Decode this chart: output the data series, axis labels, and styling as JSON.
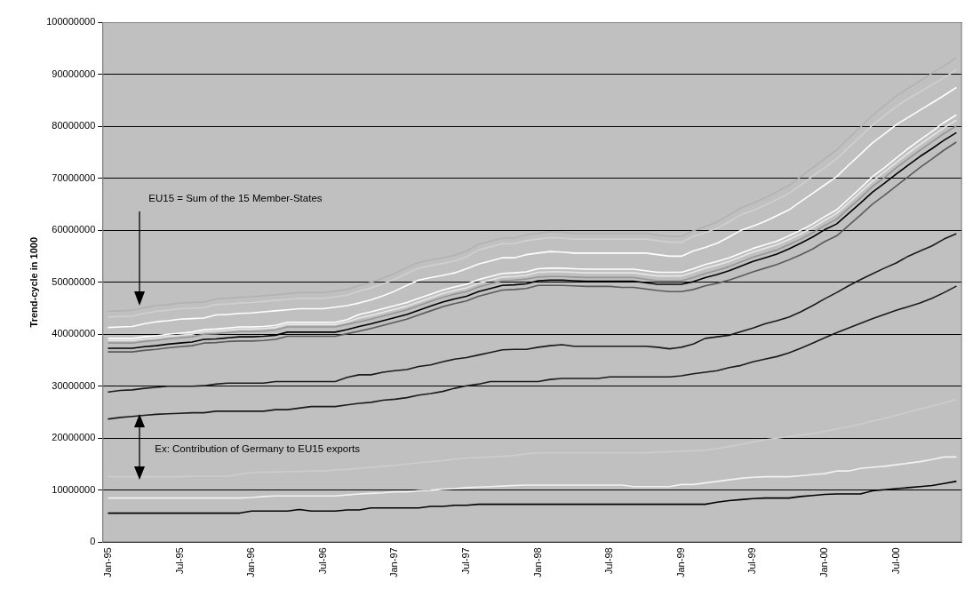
{
  "chart_data": {
    "type": "line",
    "ylabel": "Trend-cycle in 1000",
    "annotations": [
      "EU15 = Sum of the 15 Member-States",
      "Ex: Contribution of Germany to EU15 exports"
    ],
    "categories": [
      "Jan-95",
      null,
      null,
      null,
      null,
      null,
      "Jul-95",
      null,
      null,
      null,
      null,
      null,
      "Jan-96",
      null,
      null,
      null,
      null,
      null,
      "Jul-96",
      null,
      null,
      null,
      null,
      null,
      "Jan-97",
      null,
      null,
      null,
      null,
      null,
      "Jul-97",
      null,
      null,
      null,
      null,
      null,
      "Jan-98",
      null,
      null,
      null,
      null,
      null,
      "Jul-98",
      null,
      null,
      null,
      null,
      null,
      "Jan-99",
      null,
      null,
      null,
      null,
      null,
      "Jul-99",
      null,
      null,
      null,
      null,
      null,
      "Jan-00",
      null,
      null,
      null,
      null,
      null,
      "Jul-00",
      null,
      null,
      null,
      null,
      null
    ],
    "ylim": [
      0,
      100000000
    ],
    "yticks": [
      0,
      10000000,
      20000000,
      30000000,
      40000000,
      50000000,
      60000000,
      70000000,
      80000000,
      90000000,
      100000000
    ],
    "grid": "y",
    "marker": "none",
    "line_style": "solid",
    "series": [
      {
        "color": "#000000",
        "values": [
          5600000,
          5600000,
          5600000,
          5600000,
          5600000,
          5600000,
          5600000,
          5600000,
          5600000,
          5600000,
          5600000,
          5600000,
          6000000,
          6000000,
          6000000,
          6000000,
          6300000,
          6000000,
          6000000,
          6000000,
          6200000,
          6200000,
          6600000,
          6600000,
          6600000,
          6600000,
          6600000,
          6900000,
          6900000,
          7100000,
          7100000,
          7300000,
          7300000,
          7300000,
          7300000,
          7300000,
          7300000,
          7300000,
          7300000,
          7300000,
          7300000,
          7300000,
          7300000,
          7300000,
          7300000,
          7300000,
          7300000,
          7300000,
          7300000,
          7300000,
          7300000,
          7700000,
          8000000,
          8200000,
          8400000,
          8500000,
          8500000,
          8500000,
          8800000,
          9000000,
          9200000,
          9300000,
          9300000,
          9300000,
          9900000,
          10100000,
          10300000,
          10500000,
          10700000,
          10900000,
          11300000,
          11700000
        ]
      },
      {
        "color": "#f2f2f2",
        "values": [
          8500000,
          8500000,
          8500000,
          8500000,
          8500000,
          8500000,
          8500000,
          8500000,
          8500000,
          8500000,
          8500000,
          8500000,
          8600000,
          8800000,
          8900000,
          8900000,
          8900000,
          8900000,
          8900000,
          8900000,
          9100000,
          9300000,
          9400000,
          9500000,
          9700000,
          9700000,
          9900000,
          10000000,
          10200000,
          10300000,
          10500000,
          10600000,
          10700000,
          10800000,
          10900000,
          11000000,
          11000000,
          11000000,
          11000000,
          11000000,
          11000000,
          11000000,
          11000000,
          11000000,
          10700000,
          10700000,
          10700000,
          10700000,
          11100000,
          11100000,
          11400000,
          11700000,
          12000000,
          12300000,
          12500000,
          12600000,
          12600000,
          12600000,
          12800000,
          13000000,
          13200000,
          13700000,
          13700000,
          14200000,
          14400000,
          14600000,
          14900000,
          15200000,
          15500000,
          15900000,
          16400000,
          16400000
        ]
      },
      {
        "color": "#cdcdcd",
        "values": [
          12600000,
          12600000,
          12600000,
          12600000,
          12600000,
          12600000,
          12600000,
          12700000,
          12700000,
          12700000,
          12700000,
          13100000,
          13400000,
          13500000,
          13500000,
          13600000,
          13600000,
          13700000,
          13700000,
          13900000,
          14000000,
          14200000,
          14400000,
          14600000,
          14800000,
          15000000,
          15300000,
          15500000,
          15700000,
          16000000,
          16200000,
          16300000,
          16400000,
          16500000,
          16700000,
          17000000,
          17200000,
          17200000,
          17200000,
          17200000,
          17200000,
          17200000,
          17200000,
          17200000,
          17200000,
          17200000,
          17300000,
          17400000,
          17500000,
          17600000,
          17700000,
          18000000,
          18400000,
          18800000,
          19300000,
          19700000,
          20000000,
          20300000,
          20600000,
          20900000,
          21300000,
          21800000,
          22200000,
          22700000,
          23300000,
          23800000,
          24400000,
          25000000,
          25600000,
          26200000,
          26800000,
          27400000
        ]
      },
      {
        "color": "#1a1a1a",
        "values": [
          23700000,
          24000000,
          24200000,
          24400000,
          24600000,
          24700000,
          24800000,
          24900000,
          24900000,
          25200000,
          25200000,
          25200000,
          25200000,
          25200000,
          25500000,
          25500000,
          25800000,
          26100000,
          26100000,
          26100000,
          26400000,
          26700000,
          26900000,
          27300000,
          27500000,
          27800000,
          28300000,
          28600000,
          29000000,
          29600000,
          30100000,
          30400000,
          30900000,
          30900000,
          30900000,
          30900000,
          30900000,
          31300000,
          31500000,
          31500000,
          31500000,
          31500000,
          31800000,
          31800000,
          31800000,
          31800000,
          31800000,
          31800000,
          32000000,
          32400000,
          32700000,
          33000000,
          33600000,
          34000000,
          34700000,
          35200000,
          35700000,
          36400000,
          37300000,
          38300000,
          39300000,
          40300000,
          41200000,
          42100000,
          43000000,
          43800000,
          44600000,
          45300000,
          46000000,
          46900000,
          48000000,
          49200000
        ]
      },
      {
        "color": "#1a1a1a",
        "values": [
          28900000,
          29200000,
          29300000,
          29600000,
          29800000,
          30000000,
          30000000,
          30000000,
          30100000,
          30400000,
          30600000,
          30600000,
          30600000,
          30600000,
          30900000,
          30900000,
          30900000,
          30900000,
          30900000,
          30900000,
          31700000,
          32200000,
          32200000,
          32700000,
          33000000,
          33200000,
          33800000,
          34100000,
          34700000,
          35200000,
          35500000,
          36000000,
          36500000,
          37000000,
          37100000,
          37100000,
          37500000,
          37800000,
          38000000,
          37700000,
          37700000,
          37700000,
          37700000,
          37700000,
          37700000,
          37700000,
          37500000,
          37200000,
          37500000,
          38100000,
          39200000,
          39500000,
          39800000,
          40500000,
          41200000,
          42000000,
          42600000,
          43300000,
          44300000,
          45500000,
          46800000,
          48000000,
          49300000,
          50500000,
          51600000,
          52700000,
          53700000,
          55000000,
          56000000,
          57000000,
          58300000,
          59300000
        ]
      },
      {
        "color": "#5a5a5a",
        "values": [
          36600000,
          36600000,
          36600000,
          36900000,
          37100000,
          37400000,
          37600000,
          37800000,
          38300000,
          38400000,
          38600000,
          38700000,
          38700000,
          38800000,
          39000000,
          39600000,
          39600000,
          39600000,
          39600000,
          39600000,
          40100000,
          40600000,
          41100000,
          41700000,
          42300000,
          42900000,
          43700000,
          44500000,
          45300000,
          45900000,
          46400000,
          47300000,
          47900000,
          48500000,
          48600000,
          48800000,
          49400000,
          49400000,
          49400000,
          49300000,
          49200000,
          49200000,
          49200000,
          49000000,
          49000000,
          48700000,
          48400000,
          48200000,
          48200000,
          48600000,
          49300000,
          49800000,
          50400000,
          51200000,
          52000000,
          52700000,
          53400000,
          54300000,
          55300000,
          56400000,
          57800000,
          58900000,
          60900000,
          62900000,
          65000000,
          66700000,
          68500000,
          70300000,
          72100000,
          73700000,
          75400000,
          76900000
        ]
      },
      {
        "color": "#000000",
        "values": [
          37300000,
          37300000,
          37300000,
          37600000,
          37800000,
          38100000,
          38300000,
          38500000,
          39000000,
          39100000,
          39300000,
          39500000,
          39500000,
          39600000,
          39800000,
          40400000,
          40400000,
          40400000,
          40400000,
          40400000,
          40900000,
          41500000,
          42000000,
          42600000,
          43200000,
          43800000,
          44600000,
          45400000,
          46200000,
          46800000,
          47300000,
          48200000,
          48800000,
          49400000,
          49500000,
          49700000,
          50300000,
          50400000,
          50400000,
          50300000,
          50200000,
          50200000,
          50200000,
          50200000,
          50200000,
          49900000,
          49600000,
          49600000,
          49600000,
          50100000,
          50900000,
          51500000,
          52200000,
          53100000,
          54000000,
          54700000,
          55400000,
          56400000,
          57500000,
          58700000,
          60100000,
          61200000,
          63200000,
          65200000,
          67300000,
          69000000,
          70800000,
          72500000,
          74200000,
          75700000,
          77300000,
          78700000
        ]
      },
      {
        "color": "#969696",
        "values": [
          38300000,
          38300000,
          38300000,
          38600000,
          38800000,
          39100000,
          39300000,
          39500000,
          40000000,
          40100000,
          40300000,
          40500000,
          40500000,
          40600000,
          40800000,
          41400000,
          41400000,
          41400000,
          41400000,
          41400000,
          41900000,
          42400000,
          42900000,
          43500000,
          44100000,
          44700000,
          45500000,
          46300000,
          47100000,
          47700000,
          48200000,
          49100000,
          49700000,
          50300000,
          50400000,
          50600000,
          51000000,
          51100000,
          51100000,
          51000000,
          50900000,
          50900000,
          50900000,
          50900000,
          50900000,
          50600000,
          50300000,
          50300000,
          50300000,
          50900000,
          51700000,
          52300000,
          53000000,
          53900000,
          54800000,
          55500000,
          56200000,
          57200000,
          58300000,
          59500000,
          60900000,
          62100000,
          64200000,
          66200000,
          68400000,
          70100000,
          72000000,
          73700000,
          75400000,
          77000000,
          78600000,
          80000000
        ]
      },
      {
        "color": "#e6e6e6",
        "values": [
          38800000,
          38800000,
          38800000,
          39100000,
          39300000,
          39600000,
          39800000,
          40000000,
          40500000,
          40600000,
          40800000,
          41000000,
          41000000,
          41100000,
          41300000,
          41900000,
          41900000,
          41900000,
          41900000,
          41900000,
          42400000,
          43100000,
          43600000,
          44200000,
          44800000,
          45400000,
          46200000,
          47000000,
          47800000,
          48400000,
          48900000,
          49800000,
          50400000,
          51000000,
          51100000,
          51300000,
          51900000,
          52000000,
          52000000,
          51900000,
          51800000,
          51800000,
          51800000,
          51800000,
          51800000,
          51500000,
          51200000,
          51200000,
          51200000,
          51900000,
          52700000,
          53300000,
          54000000,
          54900000,
          55800000,
          56500000,
          57200000,
          58200000,
          59300000,
          60500000,
          61900000,
          63200000,
          65200000,
          67300000,
          69400000,
          71200000,
          73000000,
          74800000,
          76500000,
          78100000,
          79700000,
          81100000
        ]
      },
      {
        "color": "#ffffff",
        "values": [
          39200000,
          39200000,
          39200000,
          39500000,
          39700000,
          40000000,
          40200000,
          40400000,
          40900000,
          41000000,
          41200000,
          41400000,
          41400000,
          41500000,
          41700000,
          42300000,
          42300000,
          42300000,
          42300000,
          42300000,
          42800000,
          43800000,
          44300000,
          44900000,
          45500000,
          46100000,
          46900000,
          47700000,
          48500000,
          49100000,
          49600000,
          50500000,
          51100000,
          51700000,
          51800000,
          52000000,
          52600000,
          52700000,
          52700000,
          52600000,
          52500000,
          52500000,
          52500000,
          52500000,
          52500000,
          52200000,
          51900000,
          51900000,
          51900000,
          52600000,
          53400000,
          54000000,
          54700000,
          55600000,
          56500000,
          57200000,
          57900000,
          58900000,
          60000000,
          61200000,
          62600000,
          63900000,
          66000000,
          68100000,
          70300000,
          72000000,
          73900000,
          75700000,
          77400000,
          79000000,
          80700000,
          82100000
        ]
      },
      {
        "color": "#ffffff",
        "values": [
          41300000,
          41400000,
          41500000,
          42000000,
          42400000,
          42600000,
          42900000,
          43000000,
          43100000,
          43700000,
          43800000,
          44000000,
          44100000,
          44300000,
          44500000,
          44700000,
          44900000,
          44900000,
          44900000,
          45200000,
          45500000,
          46000000,
          46600000,
          47400000,
          48300000,
          49400000,
          50400000,
          50900000,
          51300000,
          51800000,
          52600000,
          53500000,
          54100000,
          54700000,
          54700000,
          55300000,
          55600000,
          55900000,
          55800000,
          55600000,
          55600000,
          55600000,
          55600000,
          55600000,
          55600000,
          55600000,
          55300000,
          55000000,
          55000000,
          56000000,
          56700000,
          57500000,
          58700000,
          60000000,
          60800000,
          61700000,
          62800000,
          63900000,
          65500000,
          67100000,
          68700000,
          70300000,
          72500000,
          74600000,
          76800000,
          78500000,
          80300000,
          81700000,
          83100000,
          84500000,
          85900000,
          87400000
        ]
      },
      {
        "color": "#d0d0d0",
        "values": [
          43300000,
          43400000,
          43500000,
          44000000,
          44400000,
          44600000,
          44900000,
          45000000,
          45100000,
          45700000,
          45800000,
          46000000,
          46100000,
          46300000,
          46500000,
          46700000,
          46900000,
          46900000,
          46900000,
          47200000,
          47500000,
          48300000,
          48900000,
          49700000,
          50600000,
          51700000,
          52700000,
          53200000,
          53600000,
          54100000,
          54900000,
          56200000,
          56800000,
          57400000,
          57400000,
          58000000,
          58300000,
          58600000,
          58500000,
          58300000,
          58300000,
          58300000,
          58300000,
          58300000,
          58300000,
          58300000,
          58000000,
          57700000,
          57700000,
          58800000,
          59500000,
          60400000,
          61600000,
          63000000,
          63800000,
          64800000,
          65900000,
          67100000,
          68700000,
          70400000,
          72000000,
          73700000,
          75900000,
          78000000,
          80200000,
          82000000,
          83800000,
          85300000,
          86600000,
          88000000,
          89300000,
          90800000
        ]
      },
      {
        "color": "#b2b2b2",
        "values": [
          44400000,
          44500000,
          44600000,
          45100000,
          45500000,
          45700000,
          46000000,
          46100000,
          46200000,
          46800000,
          46900000,
          47100000,
          47200000,
          47400000,
          47600000,
          47800000,
          48000000,
          48000000,
          48000000,
          48300000,
          48600000,
          49400000,
          50000000,
          50800000,
          51700000,
          52800000,
          53800000,
          54300000,
          54700000,
          55200000,
          56000000,
          57300000,
          57900000,
          58500000,
          58500000,
          59100000,
          59400000,
          59700000,
          59600000,
          59400000,
          59400000,
          59400000,
          59400000,
          59400000,
          59400000,
          59400000,
          59100000,
          58800000,
          58800000,
          59900000,
          60700000,
          61600000,
          62900000,
          64300000,
          65200000,
          66200000,
          67400000,
          68600000,
          70300000,
          72000000,
          73700000,
          75400000,
          77700000,
          79800000,
          82100000,
          83900000,
          85800000,
          87300000,
          88700000,
          90200000,
          91600000,
          93100000
        ]
      }
    ]
  }
}
